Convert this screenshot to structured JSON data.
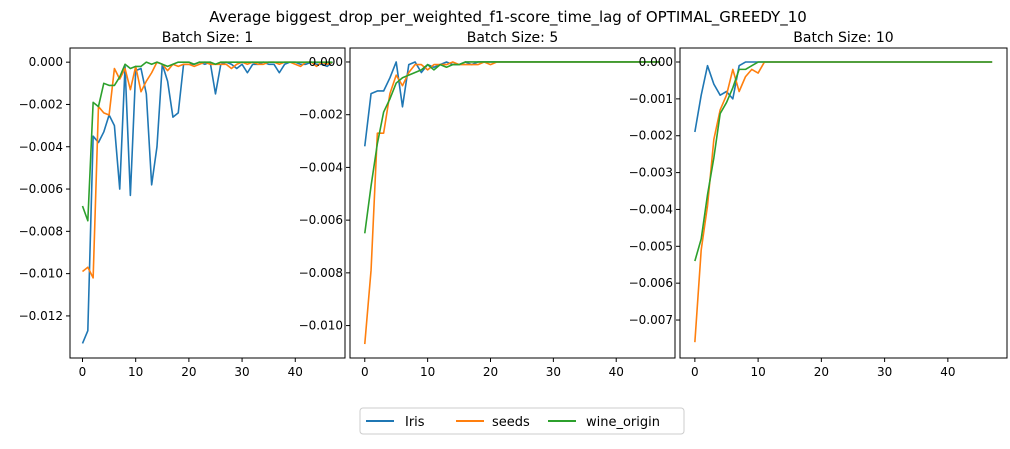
{
  "figure_title": "Average biggest_drop_per_weighted_f1-score_time_lag of OPTIMAL_GREEDY_10",
  "legend_entries": [
    "Iris",
    "seeds",
    "wine_origin"
  ],
  "colors": {
    "Iris": "#1f77b4",
    "seeds": "#ff7f0e",
    "wine_origin": "#2ca02c",
    "axes": "#000000",
    "background": "#ffffff"
  },
  "chart_data": [
    {
      "type": "line",
      "title": "Batch Size: 1",
      "xlabel": "",
      "ylabel": "",
      "xlim": [
        -2.35,
        49.35
      ],
      "ylim": [
        -0.01399,
        0.00067
      ],
      "xticks": [
        0,
        10,
        20,
        30,
        40
      ],
      "yticks": [
        0.0,
        -0.002,
        -0.004,
        -0.006,
        -0.008,
        -0.01,
        -0.012
      ],
      "ytick_labels": [
        "0.000",
        "−0.002",
        "−0.004",
        "−0.006",
        "−0.008",
        "−0.010",
        "−0.012"
      ],
      "grid": false,
      "series": [
        {
          "name": "Iris",
          "x": [
            0,
            1,
            2,
            3,
            4,
            5,
            6,
            7,
            8,
            9,
            10,
            11,
            12,
            13,
            14,
            15,
            16,
            17,
            18,
            19,
            20,
            21,
            22,
            23,
            24,
            25,
            26,
            27,
            28,
            29,
            30,
            31,
            32,
            33,
            34,
            35,
            36,
            37,
            38,
            39,
            40,
            41,
            42,
            43,
            44,
            45,
            46,
            47
          ],
          "y": [
            -0.0133,
            -0.0127,
            -0.0035,
            -0.0038,
            -0.0033,
            -0.0025,
            -0.003,
            -0.006,
            -0.0002,
            -0.0063,
            -0.0004,
            -0.0003,
            -0.0015,
            -0.0058,
            -0.004,
            -0.0001,
            -0.0009,
            -0.0026,
            -0.0024,
            -0.0001,
            -0.0001,
            -0.0001,
            0,
            -0.0001,
            0,
            -0.0015,
            -0.0001,
            0,
            -0.0001,
            -0.0003,
            -0.0001,
            -0.0005,
            -0.0001,
            -0.0001,
            0,
            -0.0001,
            -0.0001,
            -0.0005,
            -0.0001,
            0,
            0,
            -0.0001,
            -0.0001,
            0,
            -0.0001,
            -0.0001,
            -0.0002,
            0
          ]
        },
        {
          "name": "seeds",
          "x": [
            0,
            1,
            2,
            3,
            4,
            5,
            6,
            7,
            8,
            9,
            10,
            11,
            12,
            13,
            14,
            15,
            16,
            17,
            18,
            19,
            20,
            21,
            22,
            23,
            24,
            25,
            26,
            27,
            28,
            29,
            30,
            31,
            32,
            33,
            34,
            35,
            36,
            37,
            38,
            39,
            40,
            41,
            42,
            43,
            44,
            45,
            46,
            47
          ],
          "y": [
            -0.0099,
            -0.0097,
            -0.0102,
            -0.0021,
            -0.0024,
            -0.0025,
            -0.0003,
            -0.0008,
            -0.0003,
            -0.0013,
            -0.0002,
            -0.0014,
            -0.0009,
            -0.0005,
            0,
            -0.0001,
            -0.0004,
            -0.0001,
            -0.0002,
            -0.0001,
            -0.0001,
            -0.0002,
            -0.0001,
            0,
            -0.0001,
            -0.0001,
            -0.0001,
            -0.0001,
            -0.0003,
            -0.0001,
            0,
            -0.0001,
            0,
            -0.0001,
            -0.0001,
            0,
            0,
            -0.0001,
            0,
            0,
            -0.0001,
            -0.0002,
            0,
            0,
            -0.0002,
            0,
            -0.0001,
            0
          ]
        },
        {
          "name": "wine_origin",
          "x": [
            0,
            1,
            2,
            3,
            4,
            5,
            6,
            7,
            8,
            9,
            10,
            11,
            12,
            13,
            14,
            15,
            16,
            17,
            18,
            19,
            20,
            21,
            22,
            23,
            24,
            25,
            26,
            27,
            28,
            29,
            30,
            31,
            32,
            33,
            34,
            35,
            36,
            37,
            38,
            39,
            40,
            41,
            42,
            43,
            44,
            45,
            46,
            47
          ],
          "y": [
            -0.0068,
            -0.0075,
            -0.0019,
            -0.0021,
            -0.001,
            -0.0011,
            -0.0011,
            -0.0007,
            -0.0001,
            -0.0003,
            -0.0002,
            -0.0002,
            0,
            -0.0001,
            0,
            -0.0001,
            -0.0002,
            -0.0001,
            0,
            0,
            0,
            -0.0001,
            0,
            0,
            0,
            -0.0001,
            0,
            0,
            0,
            0,
            0,
            0,
            0,
            0,
            0,
            0,
            0,
            0,
            0,
            0,
            0,
            0,
            0,
            0,
            0,
            0,
            0,
            0
          ]
        }
      ]
    },
    {
      "type": "line",
      "title": "Batch Size: 5",
      "xlabel": "",
      "ylabel": "",
      "xlim": [
        -2.35,
        49.35
      ],
      "ylim": [
        -0.01123,
        0.00053
      ],
      "xticks": [
        0,
        10,
        20,
        30,
        40
      ],
      "yticks": [
        0.0,
        -0.002,
        -0.004,
        -0.006,
        -0.008,
        -0.01
      ],
      "ytick_labels": [
        "0.000",
        "−0.002",
        "−0.004",
        "−0.006",
        "−0.008",
        "−0.010"
      ],
      "grid": false,
      "series": [
        {
          "name": "Iris",
          "x": [
            0,
            1,
            2,
            3,
            4,
            5,
            6,
            7,
            8,
            9,
            10,
            11,
            12,
            13,
            14,
            15,
            16,
            17,
            18,
            19,
            20,
            21,
            22,
            23,
            24,
            25,
            26,
            27,
            28,
            29,
            30,
            31,
            32,
            33,
            34,
            35,
            36,
            37,
            38,
            39,
            40,
            41,
            42,
            43,
            44,
            45,
            46,
            47
          ],
          "y": [
            -0.0032,
            -0.0012,
            -0.0011,
            -0.0011,
            -0.0006,
            0,
            -0.0017,
            -0.0001,
            0,
            -0.0004,
            -0.0001,
            -0.0002,
            -0.0001,
            0,
            -0.0001,
            -0.0001,
            0,
            -0.0001,
            0,
            0,
            0,
            0,
            0,
            0,
            0,
            0,
            0,
            0,
            0,
            0,
            0,
            0,
            0,
            0,
            0,
            0,
            0,
            0,
            0,
            0,
            0,
            0,
            0,
            0,
            0,
            0,
            0,
            0
          ]
        },
        {
          "name": "seeds",
          "x": [
            0,
            1,
            2,
            3,
            4,
            5,
            6,
            7,
            8,
            9,
            10,
            11,
            12,
            13,
            14,
            15,
            16,
            17,
            18,
            19,
            20,
            21,
            22,
            23,
            24,
            25,
            26,
            27,
            28,
            29,
            30,
            31,
            32,
            33,
            34,
            35,
            36,
            37,
            38,
            39,
            40,
            41,
            42,
            43,
            44,
            45,
            46,
            47
          ],
          "y": [
            -0.0107,
            -0.0079,
            -0.0027,
            -0.0027,
            -0.0012,
            -0.0005,
            -0.0009,
            -0.0004,
            -0.0001,
            -0.0001,
            -0.0003,
            -0.0001,
            -0.0001,
            -0.0001,
            0,
            -0.0001,
            -0.0001,
            -0.0001,
            -0.0001,
            0,
            -0.0001,
            0,
            0,
            0,
            0,
            0,
            0,
            0,
            0,
            0,
            0,
            0,
            0,
            0,
            0,
            0,
            0,
            0,
            0,
            0,
            0,
            0,
            0,
            0,
            0,
            0,
            0,
            0
          ]
        },
        {
          "name": "wine_origin",
          "x": [
            0,
            1,
            2,
            3,
            4,
            5,
            6,
            7,
            8,
            9,
            10,
            11,
            12,
            13,
            14,
            15,
            16,
            17,
            18,
            19,
            20,
            21,
            22,
            23,
            24,
            25,
            26,
            27,
            28,
            29,
            30,
            31,
            32,
            33,
            34,
            35,
            36,
            37,
            38,
            39,
            40,
            41,
            42,
            43,
            44,
            45,
            46,
            47
          ],
          "y": [
            -0.0065,
            -0.0047,
            -0.0031,
            -0.0019,
            -0.0014,
            -0.0008,
            -0.0006,
            -0.0005,
            -0.0004,
            -0.0003,
            -0.0001,
            -0.0003,
            -0.0001,
            -0.0002,
            -0.0001,
            -0.0001,
            0,
            0,
            0,
            0,
            0,
            0,
            0,
            0,
            0,
            0,
            0,
            0,
            0,
            0,
            0,
            0,
            0,
            0,
            0,
            0,
            0,
            0,
            0,
            0,
            0,
            0,
            0,
            0,
            0,
            0,
            0,
            0
          ]
        }
      ]
    },
    {
      "type": "line",
      "title": "Batch Size: 10",
      "xlabel": "",
      "ylabel": "",
      "xlim": [
        -2.35,
        49.35
      ],
      "ylim": [
        -0.00803,
        0.00038
      ],
      "xticks": [
        0,
        10,
        20,
        30,
        40
      ],
      "yticks": [
        0.0,
        -0.001,
        -0.002,
        -0.003,
        -0.004,
        -0.005,
        -0.006,
        -0.007
      ],
      "ytick_labels": [
        "0.000",
        "−0.001",
        "−0.002",
        "−0.003",
        "−0.004",
        "−0.005",
        "−0.006",
        "−0.007"
      ],
      "grid": false,
      "series": [
        {
          "name": "Iris",
          "x": [
            0,
            1,
            2,
            3,
            4,
            5,
            6,
            7,
            8,
            9,
            10,
            11,
            12,
            13,
            14,
            15,
            16,
            17,
            18,
            19,
            20,
            21,
            22,
            23,
            24,
            25,
            26,
            27,
            28,
            29,
            30,
            31,
            32,
            33,
            34,
            35,
            36,
            37,
            38,
            39,
            40,
            41,
            42,
            43,
            44,
            45,
            46,
            47
          ],
          "y": [
            -0.0019,
            -0.0009,
            -0.0001,
            -0.0006,
            -0.0009,
            -0.0008,
            -0.001,
            -0.0001,
            0,
            0,
            0,
            0,
            0,
            0,
            0,
            0,
            0,
            0,
            0,
            0,
            0,
            0,
            0,
            0,
            0,
            0,
            0,
            0,
            0,
            0,
            0,
            0,
            0,
            0,
            0,
            0,
            0,
            0,
            0,
            0,
            0,
            0,
            0,
            0,
            0,
            0,
            0,
            0
          ]
        },
        {
          "name": "seeds",
          "x": [
            0,
            1,
            2,
            3,
            4,
            5,
            6,
            7,
            8,
            9,
            10,
            11,
            12,
            13,
            14,
            15,
            16,
            17,
            18,
            19,
            20,
            21,
            22,
            23,
            24,
            25,
            26,
            27,
            28,
            29,
            30,
            31,
            32,
            33,
            34,
            35,
            36,
            37,
            38,
            39,
            40,
            41,
            42,
            43,
            44,
            45,
            46,
            47
          ],
          "y": [
            -0.0076,
            -0.0051,
            -0.0039,
            -0.0021,
            -0.0013,
            -0.0009,
            -0.0002,
            -0.0008,
            -0.0004,
            -0.0002,
            -0.0003,
            0,
            0,
            0,
            0,
            0,
            0,
            0,
            0,
            0,
            0,
            0,
            0,
            0,
            0,
            0,
            0,
            0,
            0,
            0,
            0,
            0,
            0,
            0,
            0,
            0,
            0,
            0,
            0,
            0,
            0,
            0,
            0,
            0,
            0,
            0,
            0,
            0
          ]
        },
        {
          "name": "wine_origin",
          "x": [
            0,
            1,
            2,
            3,
            4,
            5,
            6,
            7,
            8,
            9,
            10,
            11,
            12,
            13,
            14,
            15,
            16,
            17,
            18,
            19,
            20,
            21,
            22,
            23,
            24,
            25,
            26,
            27,
            28,
            29,
            30,
            31,
            32,
            33,
            34,
            35,
            36,
            37,
            38,
            39,
            40,
            41,
            42,
            43,
            44,
            45,
            46,
            47
          ],
          "y": [
            -0.0054,
            -0.0048,
            -0.0036,
            -0.0026,
            -0.0014,
            -0.0011,
            -0.0007,
            -0.0002,
            -0.0002,
            -0.0001,
            0,
            0,
            0,
            0,
            0,
            0,
            0,
            0,
            0,
            0,
            0,
            0,
            0,
            0,
            0,
            0,
            0,
            0,
            0,
            0,
            0,
            0,
            0,
            0,
            0,
            0,
            0,
            0,
            0,
            0,
            0,
            0,
            0,
            0,
            0,
            0,
            0,
            0
          ]
        }
      ]
    }
  ]
}
